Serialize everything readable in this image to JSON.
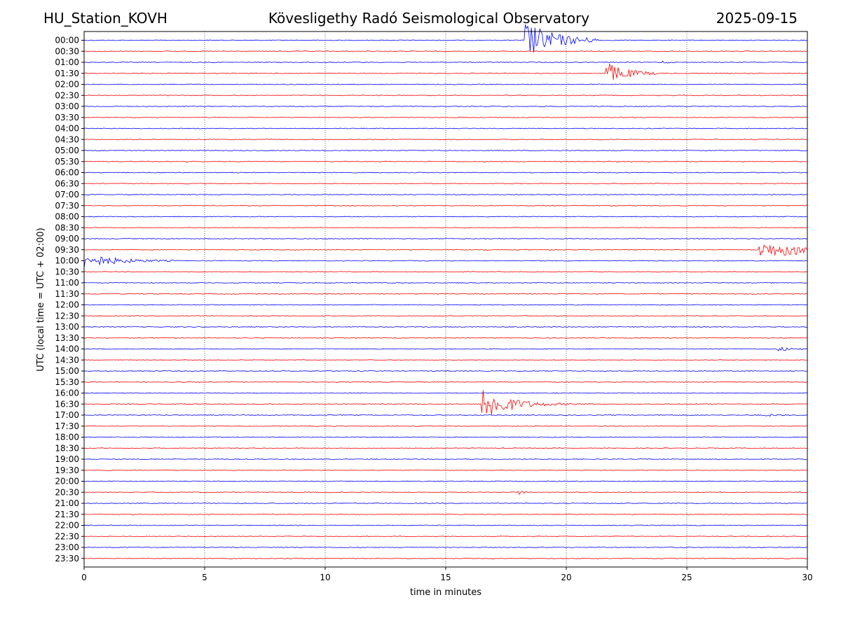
{
  "header": {
    "station": "HU_Station_KOVH",
    "title": "Kövesligethy Radó Seismological Observatory",
    "date": "2025-09-15"
  },
  "chart_data": {
    "type": "line",
    "subtype": "helicorder",
    "xlabel": "time in minutes",
    "ylabel": "UTC (local time = UTC + 02:00)",
    "xlim": [
      0,
      30
    ],
    "xticks": [
      0,
      5,
      10,
      15,
      20,
      25,
      30
    ],
    "grid": "vertical dotted lines at x ticks",
    "trace_colors": [
      "#0000ff",
      "#ff0000"
    ],
    "row_labels": [
      "00:00",
      "00:30",
      "01:00",
      "01:30",
      "02:00",
      "02:30",
      "03:00",
      "03:30",
      "04:00",
      "04:30",
      "05:00",
      "05:30",
      "06:00",
      "06:30",
      "07:00",
      "07:30",
      "08:00",
      "08:30",
      "09:00",
      "09:30",
      "10:00",
      "10:30",
      "11:00",
      "11:30",
      "12:00",
      "12:30",
      "13:00",
      "13:30",
      "14:00",
      "14:30",
      "15:00",
      "15:30",
      "16:00",
      "16:30",
      "17:00",
      "17:30",
      "18:00",
      "18:30",
      "19:00",
      "19:30",
      "20:00",
      "20:30",
      "21:00",
      "21:30",
      "22:00",
      "22:30",
      "23:00",
      "23:30"
    ],
    "events": [
      {
        "row": 0,
        "t": 18.3,
        "amp": 4.5,
        "decay": 1.2,
        "duration": 3.0
      },
      {
        "row": 3,
        "t": 21.6,
        "amp": 3.0,
        "decay": 0.8,
        "duration": 2.3
      },
      {
        "row": 19,
        "t": 28.0,
        "amp": 1.6,
        "decay": 6.0,
        "duration": 2.0
      },
      {
        "row": 20,
        "t": 0.0,
        "amp": 1.8,
        "decay": 1.2,
        "duration": 3.8
      },
      {
        "row": 33,
        "t": 16.5,
        "amp": 4.5,
        "decay": 1.0,
        "duration": 6.0
      },
      {
        "row": 28,
        "t": 28.7,
        "amp": 0.6,
        "decay": 0.5,
        "duration": 1.2
      },
      {
        "row": 2,
        "t": 24.0,
        "amp": 0.4,
        "decay": 0.2,
        "duration": 0.3
      },
      {
        "row": 41,
        "t": 18.0,
        "amp": 0.6,
        "decay": 0.2,
        "duration": 0.4
      },
      {
        "row": 34,
        "t": 28.3,
        "amp": 0.3,
        "decay": 0.4,
        "duration": 0.8
      }
    ]
  }
}
